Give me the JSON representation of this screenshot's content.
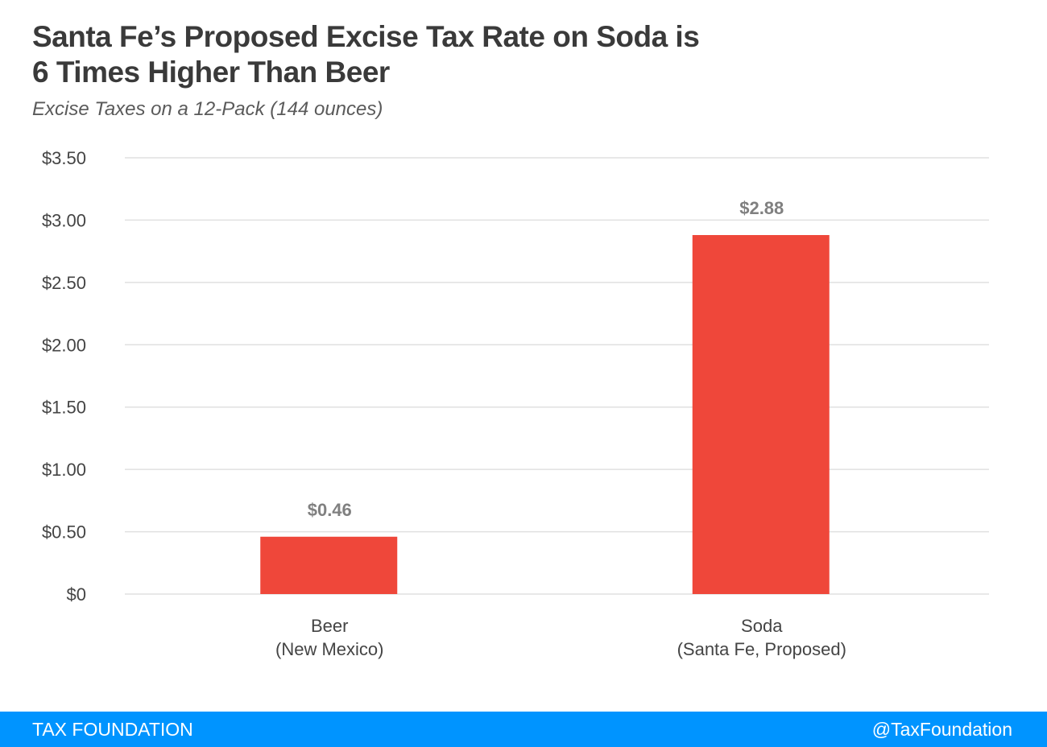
{
  "header": {
    "title_line1": "Santa Fe’s Proposed Excise Tax Rate on Soda is",
    "title_line2": "6 Times Higher Than Beer",
    "subtitle": "Excise Taxes on a 12-Pack (144 ounces)"
  },
  "chart_data": {
    "type": "bar",
    "title": "Santa Fe’s Proposed Excise Tax Rate on Soda is 6 Times Higher Than Beer",
    "subtitle": "Excise Taxes on a 12-Pack (144 ounces)",
    "xlabel": "",
    "ylabel": "",
    "categories": [
      [
        "Beer",
        "(New Mexico)"
      ],
      [
        "Soda",
        "(Santa Fe, Proposed)"
      ]
    ],
    "values": [
      0.46,
      2.88
    ],
    "value_labels": [
      "$0.46",
      "$2.88"
    ],
    "ylim": [
      0,
      3.5
    ],
    "yticks": [
      0,
      0.5,
      1.0,
      1.5,
      2.0,
      2.5,
      3.0,
      3.5
    ],
    "ytick_labels": [
      "$0",
      "$0.50",
      "$1.00",
      "$1.50",
      "$2.00",
      "$2.50",
      "$3.00",
      "$3.50"
    ],
    "grid": true,
    "legend": "none",
    "bar_color": "#ef473a",
    "grid_color": "#e0e0e0"
  },
  "footer": {
    "brand": "TAX FOUNDATION",
    "handle": "@TaxFoundation",
    "color": "#0094ff"
  }
}
